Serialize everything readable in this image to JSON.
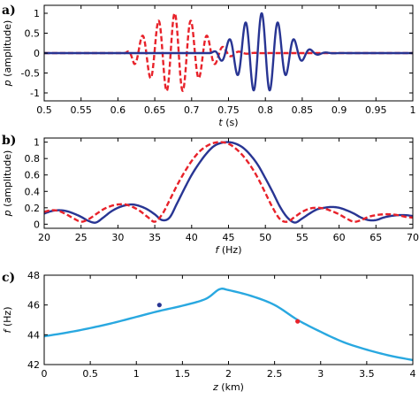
{
  "chart_data": [
    {
      "panel": "a)",
      "type": "line",
      "xlabel": "t (s)",
      "ylabel": "p (amplitude)",
      "xlim": [
        0.5,
        1.0
      ],
      "ylim": [
        -1.2,
        1.2
      ],
      "xticks": [
        "0.5",
        "0.55",
        "0.6",
        "0.65",
        "0.7",
        "0.75",
        "0.8",
        "0.85",
        "0.9",
        "0.95",
        "1"
      ],
      "yticks": [
        "-1",
        "-0.5",
        "0",
        "0.5",
        "1"
      ],
      "series": [
        {
          "color": "#e8222a",
          "style": "dashed",
          "signal": {
            "t0": 0.677,
            "f": 45.5,
            "sigma": 0.034,
            "t_start": 0.61,
            "amp": 1.0
          }
        },
        {
          "color": "#283593",
          "style": "solid",
          "signal": {
            "t0": 0.795,
            "f": 45.5,
            "sigma": 0.03,
            "t_start": 0.725,
            "amp": 1.0
          }
        }
      ]
    },
    {
      "panel": "b)",
      "type": "line",
      "xlabel": "f (Hz)",
      "ylabel": "p (amplitude)",
      "xlim": [
        20,
        70
      ],
      "ylim": [
        -0.05,
        1.05
      ],
      "xticks": [
        "20",
        "25",
        "30",
        "35",
        "40",
        "45",
        "50",
        "55",
        "60",
        "65",
        "70"
      ],
      "yticks": [
        "0",
        "0.2",
        "0.4",
        "0.6",
        "0.8",
        "1"
      ],
      "series": [
        {
          "color": "#283593",
          "style": "solid",
          "x": [
            20,
            21,
            22,
            23,
            24,
            25,
            26,
            27,
            28,
            29,
            30,
            31,
            32,
            33,
            34,
            35,
            36,
            37,
            38,
            39,
            40,
            41,
            42,
            43,
            44,
            45,
            46,
            47,
            48,
            49,
            50,
            51,
            52,
            53,
            54,
            55,
            56,
            57,
            58,
            59,
            60,
            61,
            62,
            63,
            64,
            65,
            66,
            67,
            68,
            69,
            70
          ],
          "y": [
            0.13,
            0.16,
            0.17,
            0.16,
            0.13,
            0.09,
            0.04,
            0.02,
            0.08,
            0.15,
            0.2,
            0.23,
            0.24,
            0.22,
            0.18,
            0.12,
            0.05,
            0.08,
            0.25,
            0.43,
            0.6,
            0.74,
            0.86,
            0.95,
            0.99,
            1.0,
            0.98,
            0.93,
            0.84,
            0.72,
            0.56,
            0.39,
            0.21,
            0.08,
            0.02,
            0.07,
            0.13,
            0.18,
            0.2,
            0.21,
            0.2,
            0.17,
            0.13,
            0.08,
            0.05,
            0.05,
            0.08,
            0.1,
            0.11,
            0.11,
            0.1
          ]
        },
        {
          "color": "#e8222a",
          "style": "dashed",
          "x": [
            20,
            21,
            22,
            23,
            24,
            25,
            26,
            27,
            28,
            29,
            30,
            31,
            32,
            33,
            34,
            35,
            36,
            37,
            38,
            39,
            40,
            41,
            42,
            43,
            44,
            45,
            46,
            47,
            48,
            49,
            50,
            51,
            52,
            53,
            54,
            55,
            56,
            57,
            58,
            59,
            60,
            61,
            62,
            63,
            64,
            65,
            66,
            67,
            68,
            69,
            70
          ],
          "y": [
            0.15,
            0.17,
            0.16,
            0.12,
            0.07,
            0.03,
            0.06,
            0.12,
            0.18,
            0.22,
            0.24,
            0.24,
            0.21,
            0.16,
            0.09,
            0.03,
            0.12,
            0.29,
            0.47,
            0.63,
            0.77,
            0.88,
            0.95,
            0.99,
            1.0,
            0.98,
            0.92,
            0.83,
            0.71,
            0.56,
            0.38,
            0.2,
            0.06,
            0.03,
            0.09,
            0.15,
            0.19,
            0.2,
            0.19,
            0.16,
            0.12,
            0.07,
            0.03,
            0.05,
            0.09,
            0.11,
            0.12,
            0.12,
            0.11,
            0.09,
            0.08
          ]
        }
      ]
    },
    {
      "panel": "c)",
      "type": "line",
      "xlabel": "z (km)",
      "ylabel": "f (Hz)",
      "xlim": [
        0,
        4
      ],
      "ylim": [
        42,
        48
      ],
      "xticks": [
        "0",
        "0.5",
        "1",
        "1.5",
        "2",
        "2.5",
        "3",
        "3.5",
        "4"
      ],
      "yticks": [
        "42",
        "44",
        "46",
        "48"
      ],
      "series": [
        {
          "color": "#29a8e0",
          "style": "solid",
          "x": [
            0,
            0.25,
            0.5,
            0.75,
            1.0,
            1.25,
            1.5,
            1.75,
            1.9,
            2.0,
            2.25,
            2.5,
            2.75,
            3.0,
            3.25,
            3.5,
            3.75,
            4.0
          ],
          "y": [
            43.9,
            44.15,
            44.45,
            44.8,
            45.2,
            45.6,
            45.95,
            46.4,
            47.05,
            47.0,
            46.6,
            46.0,
            45.0,
            44.2,
            43.5,
            43.0,
            42.6,
            42.3
          ]
        }
      ],
      "markers": [
        {
          "x": 1.25,
          "y": 46.0,
          "color": "#283593"
        },
        {
          "x": 2.75,
          "y": 44.9,
          "color": "#e8222a"
        }
      ]
    }
  ]
}
